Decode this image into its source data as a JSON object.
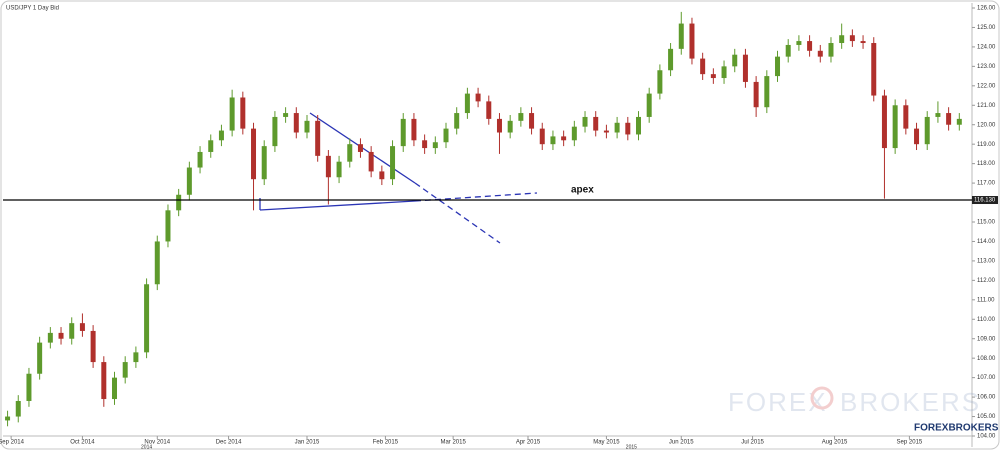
{
  "chart_data": {
    "type": "candlestick",
    "title": "USD/JPY  1 Day Bid",
    "annotation": "apex",
    "watermark": [
      "FOREX",
      "BROKERS"
    ],
    "logo": "FOREXBROKERS",
    "up_color": "#5e9a2c",
    "down_color": "#b0302c",
    "xlim": [
      0,
      271
    ],
    "ylim": [
      104,
      126
    ],
    "xticks": [
      {
        "value": 2,
        "label": "Sep 2014"
      },
      {
        "value": 22,
        "label": "Oct 2014"
      },
      {
        "value": 43,
        "label": "Nov 2014"
      },
      {
        "value": 63,
        "label": "Dec 2014"
      },
      {
        "value": 85,
        "label": "Jan 2015"
      },
      {
        "value": 107,
        "label": "Feb 2015"
      },
      {
        "value": 126,
        "label": "Mar 2015"
      },
      {
        "value": 147,
        "label": "Apr 2015"
      },
      {
        "value": 169,
        "label": "May 2015"
      },
      {
        "value": 190,
        "label": "Jun 2015"
      },
      {
        "value": 210,
        "label": "Jul 2015"
      },
      {
        "value": 233,
        "label": "Aug 2015"
      },
      {
        "value": 254,
        "label": "Sep 2015"
      }
    ],
    "year_labels": [
      {
        "value": 40,
        "label": "2014"
      },
      {
        "value": 176,
        "label": "2015"
      }
    ],
    "yticks": [
      {
        "value": 104,
        "label": "104.00"
      },
      {
        "value": 105,
        "label": "105.00"
      },
      {
        "value": 106,
        "label": "106.00"
      },
      {
        "value": 107,
        "label": "107.00"
      },
      {
        "value": 108,
        "label": "108.00"
      },
      {
        "value": 109,
        "label": "109.00"
      },
      {
        "value": 110,
        "label": "110.00"
      },
      {
        "value": 111,
        "label": "111.00"
      },
      {
        "value": 112,
        "label": "112.00"
      },
      {
        "value": 113,
        "label": "113.00"
      },
      {
        "value": 114,
        "label": "114.00"
      },
      {
        "value": 115,
        "label": "115.00"
      },
      {
        "value": 116,
        "label": "116.00"
      },
      {
        "value": 117,
        "label": "117.00"
      },
      {
        "value": 118,
        "label": "118.00"
      },
      {
        "value": 119,
        "label": "119.00"
      },
      {
        "value": 120,
        "label": "120.00"
      },
      {
        "value": 121,
        "label": "121.00"
      },
      {
        "value": 122,
        "label": "122.00"
      },
      {
        "value": 123,
        "label": "123.00"
      },
      {
        "value": 124,
        "label": "124.00"
      },
      {
        "value": 125,
        "label": "125.00"
      },
      {
        "value": 126,
        "label": "126.00"
      }
    ],
    "hline": {
      "value": 116.13,
      "label": "116.130"
    },
    "candles": {
      "x": [
        1,
        4,
        7,
        10,
        13,
        16,
        19,
        22,
        25,
        28,
        31,
        34,
        37,
        40,
        43,
        46,
        49,
        52,
        55,
        58,
        61,
        64,
        67,
        70,
        73,
        76,
        79,
        82,
        85,
        88,
        91,
        94,
        97,
        100,
        103,
        106,
        109,
        112,
        115,
        118,
        121,
        124,
        127,
        130,
        133,
        136,
        139,
        142,
        145,
        148,
        151,
        154,
        157,
        160,
        163,
        166,
        169,
        172,
        175,
        178,
        181,
        184,
        187,
        190,
        193,
        196,
        199,
        202,
        205,
        208,
        211,
        214,
        217,
        220,
        223,
        226,
        229,
        232,
        235,
        238,
        241,
        244,
        247,
        250,
        253,
        256,
        259,
        262,
        265,
        268
      ],
      "open": [
        104.8,
        105.0,
        105.8,
        107.2,
        108.8,
        109.3,
        109.0,
        109.8,
        109.4,
        107.8,
        105.9,
        107.0,
        107.8,
        108.3,
        111.8,
        114.0,
        115.6,
        116.4,
        117.8,
        118.6,
        119.2,
        119.7,
        121.4,
        119.8,
        117.2,
        118.9,
        120.4,
        120.6,
        119.6,
        120.2,
        118.4,
        117.3,
        118.1,
        119.0,
        118.6,
        117.6,
        117.2,
        118.9,
        120.3,
        119.2,
        118.8,
        119.1,
        119.8,
        120.6,
        121.6,
        121.2,
        120.3,
        119.6,
        120.2,
        120.6,
        119.8,
        119.0,
        119.4,
        119.2,
        119.9,
        120.4,
        119.7,
        119.6,
        120.1,
        119.5,
        120.4,
        121.6,
        122.8,
        123.9,
        125.2,
        123.4,
        122.6,
        122.4,
        123.0,
        123.6,
        122.2,
        120.9,
        122.5,
        123.5,
        124.1,
        124.3,
        123.8,
        123.5,
        124.2,
        124.6,
        124.3,
        124.2,
        121.5,
        118.8,
        121.0,
        119.8,
        119.0,
        120.4,
        120.6,
        120.0
      ],
      "close": [
        105.0,
        105.8,
        107.2,
        108.8,
        109.3,
        109.0,
        109.8,
        109.4,
        107.8,
        105.9,
        107.0,
        107.8,
        108.3,
        111.8,
        114.0,
        115.6,
        116.4,
        117.8,
        118.6,
        119.2,
        119.7,
        121.4,
        119.8,
        117.2,
        118.9,
        120.4,
        120.6,
        119.6,
        120.2,
        118.4,
        117.3,
        118.1,
        119.0,
        118.6,
        117.6,
        117.2,
        118.9,
        120.3,
        119.2,
        118.8,
        119.1,
        119.8,
        120.6,
        121.6,
        121.2,
        120.3,
        119.6,
        120.2,
        120.6,
        119.8,
        119.0,
        119.4,
        119.2,
        119.9,
        120.4,
        119.7,
        119.6,
        120.1,
        119.5,
        120.4,
        121.6,
        122.8,
        123.9,
        125.2,
        123.4,
        122.6,
        122.4,
        123.0,
        123.6,
        122.2,
        120.9,
        122.5,
        123.5,
        124.1,
        124.3,
        123.8,
        123.5,
        124.2,
        124.6,
        124.3,
        124.2,
        121.5,
        118.8,
        121.0,
        119.8,
        119.0,
        120.4,
        120.6,
        120.0,
        120.3
      ],
      "high": [
        105.3,
        106.1,
        107.5,
        109.1,
        109.6,
        109.6,
        110.1,
        110.3,
        109.7,
        108.1,
        107.3,
        108.1,
        108.6,
        112.1,
        114.3,
        115.9,
        116.7,
        118.1,
        118.9,
        119.5,
        120.0,
        121.8,
        121.7,
        120.1,
        119.2,
        120.7,
        120.9,
        120.9,
        120.5,
        120.5,
        118.7,
        118.4,
        119.3,
        119.3,
        118.9,
        117.9,
        119.2,
        120.6,
        120.6,
        119.5,
        119.4,
        120.1,
        120.9,
        121.9,
        121.9,
        121.5,
        120.6,
        120.5,
        120.9,
        120.9,
        120.1,
        119.7,
        119.7,
        120.2,
        120.7,
        120.7,
        120.0,
        120.4,
        120.4,
        120.7,
        121.9,
        123.1,
        124.2,
        125.8,
        125.5,
        123.7,
        122.9,
        123.3,
        123.9,
        123.9,
        122.5,
        122.8,
        123.8,
        124.4,
        124.6,
        124.6,
        124.1,
        124.5,
        125.2,
        124.9,
        124.6,
        124.5,
        121.8,
        121.3,
        121.3,
        120.1,
        120.7,
        121.2,
        120.9,
        120.6
      ],
      "low": [
        104.5,
        104.7,
        105.5,
        106.9,
        108.5,
        108.7,
        108.7,
        109.1,
        107.5,
        105.5,
        105.6,
        106.7,
        107.5,
        108.0,
        111.5,
        113.7,
        115.3,
        116.1,
        117.5,
        118.3,
        118.9,
        119.4,
        119.5,
        115.6,
        116.9,
        118.6,
        120.1,
        119.3,
        119.3,
        118.1,
        115.9,
        117.0,
        117.8,
        118.3,
        117.3,
        116.9,
        116.9,
        118.6,
        118.9,
        118.5,
        118.5,
        118.8,
        119.5,
        120.3,
        120.9,
        120.0,
        118.5,
        119.3,
        119.9,
        119.5,
        118.7,
        118.7,
        118.9,
        118.9,
        119.6,
        119.4,
        119.3,
        119.3,
        119.2,
        119.2,
        120.1,
        121.3,
        122.5,
        123.6,
        123.1,
        122.3,
        122.1,
        122.1,
        122.7,
        121.9,
        120.4,
        120.6,
        122.2,
        123.2,
        123.8,
        123.5,
        123.2,
        123.2,
        123.9,
        124.0,
        123.9,
        121.2,
        116.2,
        118.5,
        119.5,
        118.7,
        118.7,
        120.1,
        119.7,
        119.7
      ]
    }
  }
}
